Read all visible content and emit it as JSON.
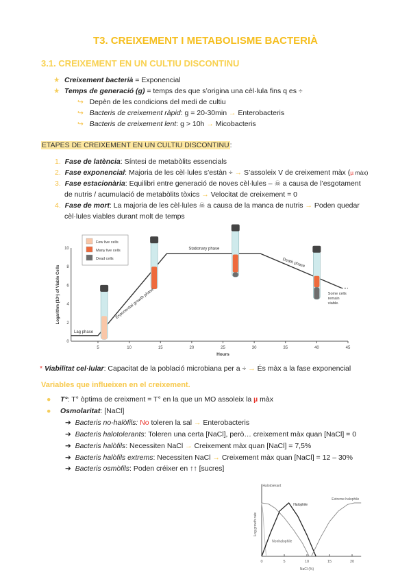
{
  "title": "T3. CREIXEMENT I METABOLISME BACTERIÀ",
  "section": "3.1. CREIXEMENT EN UN CULTIU DISCONTINU",
  "intro": [
    {
      "term": "Creixement bacterià",
      "text": " = Exponencial"
    },
    {
      "term": "Temps de generació (g)",
      "text": " = temps des que s’origina una cèl·lula fins q es ÷"
    }
  ],
  "intro_sub": [
    {
      "term": "",
      "text": "Depèn de les condicions del medi de cultiu",
      "after": ""
    },
    {
      "term": "Bacteris de creixement ràpid",
      "text": ": g = 20-30min ",
      "after": " Enterobacteris"
    },
    {
      "term": "Bacteris de creixement lent",
      "text": ": g > 10h ",
      "after": " Micobacteris"
    }
  ],
  "stages_heading": "ETAPES DE CREIXEMENT EN UN CULTIU DISCONTINU",
  "stages": [
    {
      "num": "1.",
      "term": "Fase de latència",
      "text": ": Síntesi de metabòlits essencials"
    },
    {
      "num": "2.",
      "term": "Fase exponencial",
      "text": ": Majoria de les cèl·lules s’estàn ÷ ",
      "after": " S’assoleix V de creixement màx (",
      "mu": "µ",
      "tail": " màx)"
    },
    {
      "num": "3.",
      "term": "Fase estacionària",
      "text": ":  Equilibri entre generació de noves cèl·lules – ",
      "after": " a causa de l’esgotament",
      "line2": "de nutris / acumulació de metabòlits tòxics ",
      "line2b": " Velocitat de creixement = 0"
    },
    {
      "num": "4.",
      "term": "Fase de mort",
      "text": ":  La majoria de les cèl·lules ",
      "after": " a causa de la manca de nutris ",
      "after2": " Poden quedar",
      "line2": "cèl·lules viables durant molt de temps"
    }
  ],
  "viability": {
    "mark": "*",
    "term": "Viabilitat cel·lular",
    "text": ": Capacitat de la població microbiana per a ÷ ",
    "after": " És màx a la fase exponencial"
  },
  "variables_heading": "Variables que influeixen en el creixement.",
  "variables": [
    {
      "term": "T°",
      "text": ": T° òptima de creixment = T° en la que un MO assoleix la ",
      "mu": "µ",
      "tail": " màx"
    },
    {
      "term": "Osmolaritat",
      "text": ": [NaCl]"
    }
  ],
  "osmo": [
    {
      "term": "Bacteris no-halòfils:",
      "red": " No",
      "text": " toleren la sal ",
      "after": " Enterobacteris"
    },
    {
      "term": "Bacteris halotolerants",
      "text": ": Toleren una certa [NaCl], però… creixement màx quan [NaCl] = 0"
    },
    {
      "term": "Bacteris halòfils",
      "text": ": Necessiten NaCl ",
      "after": " Creixement màx quan [NaCl] = 7,5%"
    },
    {
      "term": "Bacteris halòfils extrems",
      "text": ":  Necessiten NaCl ",
      "after": " Creixement màx quan [NaCl] = 12 – 30%"
    },
    {
      "term": "Bacteris osmòfils",
      "text": ": Poden créixer en ↑↑ [sucres]"
    }
  ],
  "chart_data": [
    {
      "type": "line",
      "title": "",
      "xlabel": "Hours",
      "ylabel": "Logarithm (10ⁿ) of Viable Cells",
      "xlim": [
        0,
        45
      ],
      "ylim": [
        0,
        10
      ],
      "xticks": [
        5,
        10,
        15,
        20,
        25,
        30,
        35,
        40,
        45
      ],
      "yticks": [
        0,
        2,
        4,
        6,
        8,
        10
      ],
      "series": [
        {
          "name": "growth",
          "x": [
            0.7,
            5,
            16,
            31,
            44
          ],
          "y": [
            0.6,
            0.6,
            9.4,
            9.4,
            5.7
          ],
          "dashed_to": [
            45,
            5.7
          ]
        }
      ],
      "annotations": [
        "Lag phase",
        "Exponential growth phase",
        "Stationary phase",
        "Death phase",
        "Some cells",
        "remain",
        "viable."
      ],
      "legend": {
        "placement": "top-left",
        "entries": [
          {
            "label": "Few live cells",
            "color": "#f9c7a8"
          },
          {
            "label": "Many live cells",
            "color": "#ee6a3c"
          },
          {
            "label": "Dead cells",
            "color": "#6d6d6d"
          }
        ]
      },
      "tubes": [
        {
          "hour": 6,
          "bottom": 0.2,
          "top": 5.6,
          "few": 2.5,
          "many": 0,
          "dead": 0
        },
        {
          "hour": 14,
          "bottom": 5.6,
          "top": 10.8,
          "few": 0,
          "many": 2.4,
          "dead": 0
        },
        {
          "hour": 27,
          "bottom": 6.9,
          "top": 12.1,
          "few": 0,
          "many": 1.9,
          "dead": 0.5
        },
        {
          "hour": 40,
          "bottom": 4.5,
          "top": 9.8,
          "few": 0,
          "many": 1.2,
          "dead": 1.3
        }
      ]
    },
    {
      "type": "line",
      "xlabel": "NaCl (%)",
      "ylabel": "Log growth rate",
      "xlim": [
        0,
        22
      ],
      "ylim": [
        0,
        1
      ],
      "xticks": [
        0,
        5,
        10,
        15,
        20
      ],
      "series": [
        {
          "name": "Nonhalophile",
          "x": [
            0,
            0.3,
            0.6,
            1
          ],
          "y": [
            1,
            0.8,
            0.4,
            0
          ],
          "color": "#bbbbbb"
        },
        {
          "name": "Halotolerant",
          "x": [
            0,
            1.5,
            3,
            5,
            7,
            9,
            10.5
          ],
          "y": [
            1,
            0.98,
            0.9,
            0.72,
            0.5,
            0.25,
            0
          ],
          "color": "#888888"
        },
        {
          "name": "Halophile",
          "x": [
            0,
            2,
            4,
            6,
            8,
            10,
            12
          ],
          "y": [
            0,
            0.45,
            0.85,
            1,
            0.75,
            0.4,
            0
          ],
          "color": "#222222"
        },
        {
          "name": "Extreme halophile",
          "x": [
            11,
            13,
            15,
            17,
            19,
            20.5,
            22
          ],
          "y": [
            0,
            0.35,
            0.65,
            0.85,
            0.97,
            1,
            1
          ],
          "color": "#888888"
        }
      ]
    }
  ]
}
